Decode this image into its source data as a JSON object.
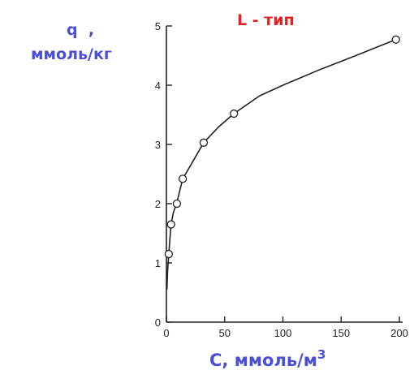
{
  "chart_data": {
    "type": "scatter",
    "annotation": "L - тип",
    "ylabel_symbol": "q",
    "ylabel_sep": ",",
    "ylabel_unit": "ммоль/кг",
    "xlabel_main": "C, ммоль/м",
    "xlabel_sup": "3",
    "xlim": [
      0,
      200
    ],
    "ylim": [
      0,
      5
    ],
    "x_ticks": [
      0,
      50,
      100,
      150,
      200
    ],
    "y_ticks": [
      0,
      1,
      2,
      3,
      4,
      5
    ],
    "x_tick_labels": [
      "0",
      "50",
      "100",
      "150",
      "200"
    ],
    "y_tick_labels": [
      "0",
      "1",
      "2",
      "3",
      "4",
      "5"
    ],
    "grid": false,
    "series": [
      {
        "marker": "open-circle",
        "x": [
          2,
          4,
          9,
          14,
          32,
          58,
          197
        ],
        "y": [
          1.15,
          1.65,
          2.0,
          2.42,
          3.03,
          3.52,
          4.77
        ]
      }
    ],
    "fitted_curve": {
      "x": [
        0.5,
        1,
        2,
        4,
        6,
        9,
        14,
        20,
        32,
        45,
        58,
        80,
        100,
        130,
        160,
        197
      ],
      "y": [
        0.55,
        0.85,
        1.15,
        1.65,
        1.85,
        2.02,
        2.42,
        2.62,
        3.03,
        3.3,
        3.52,
        3.82,
        4.0,
        4.25,
        4.48,
        4.77
      ]
    },
    "colors": {
      "axis": "#222222",
      "curve": "#222222",
      "markers": "#222222",
      "labels": "#4a4fd6",
      "annotation": "#e02424"
    }
  }
}
